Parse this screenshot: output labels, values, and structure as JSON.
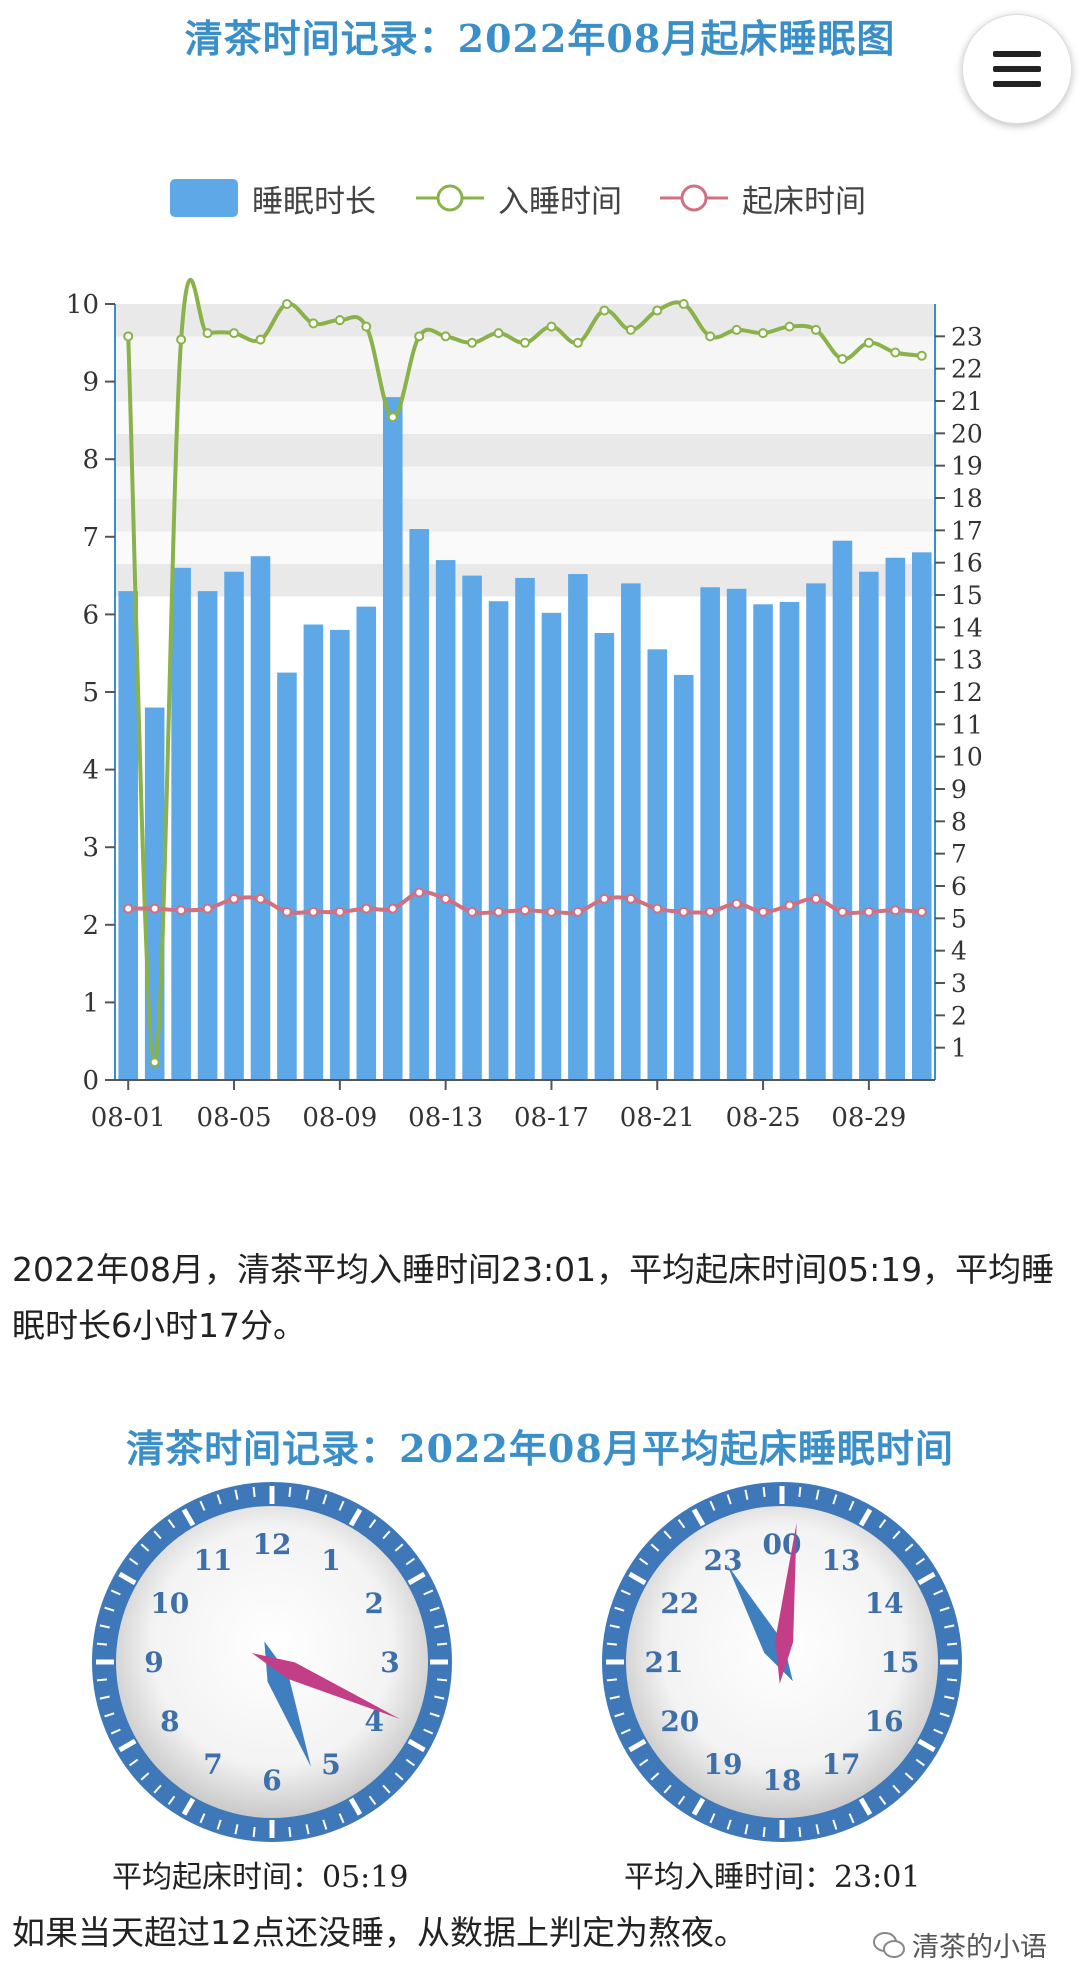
{
  "header": {
    "chart_title": "清茶时间记录：2022年08月起床睡眠图",
    "menu_icon": "hamburger-menu-icon"
  },
  "legend": [
    {
      "label": "睡眠时长",
      "color": "#5ea8e8",
      "shape": "bar"
    },
    {
      "label": "入睡时间",
      "color": "#8ab24a",
      "shape": "line-circle"
    },
    {
      "label": "起床时间",
      "color": "#d07080",
      "shape": "line-circle"
    }
  ],
  "chart_data": {
    "type": "bar",
    "title": "清茶时间记录：2022年08月起床睡眠图",
    "xlabel": "",
    "ylabel": "",
    "x_tick_labels": [
      "08-01",
      "08-05",
      "08-09",
      "08-13",
      "08-17",
      "08-21",
      "08-25",
      "08-29"
    ],
    "categories": [
      "08-01",
      "08-02",
      "08-03",
      "08-04",
      "08-05",
      "08-06",
      "08-07",
      "08-08",
      "08-09",
      "08-10",
      "08-11",
      "08-12",
      "08-13",
      "08-14",
      "08-15",
      "08-16",
      "08-17",
      "08-18",
      "08-19",
      "08-20",
      "08-21",
      "08-22",
      "08-23",
      "08-24",
      "08-25",
      "08-26",
      "08-27",
      "08-28",
      "08-29",
      "08-30",
      "08-31"
    ],
    "ylim_left": [
      0,
      10
    ],
    "ylim_right": [
      0,
      24
    ],
    "left_ticks": [
      "0",
      "1",
      "2",
      "3",
      "4",
      "5",
      "6",
      "7",
      "8",
      "9",
      "10"
    ],
    "right_ticks": [
      "1",
      "2",
      "3",
      "4",
      "5",
      "6",
      "7",
      "8",
      "9",
      "10",
      "11",
      "12",
      "13",
      "14",
      "15",
      "16",
      "17",
      "18",
      "19",
      "20",
      "21",
      "22",
      "23"
    ],
    "series": [
      {
        "name": "睡眠时长",
        "type": "bar",
        "axis": "left",
        "color": "#5ea8e8",
        "values": [
          6.3,
          4.8,
          6.6,
          6.3,
          6.55,
          6.75,
          5.25,
          5.87,
          5.8,
          6.1,
          8.8,
          7.1,
          6.7,
          6.5,
          6.17,
          6.47,
          6.02,
          6.52,
          5.76,
          6.4,
          5.55,
          5.22,
          6.35,
          6.33,
          6.13,
          6.16,
          6.4,
          6.95,
          6.55,
          6.73,
          6.8
        ]
      },
      {
        "name": "入睡时间",
        "type": "line",
        "axis": "right",
        "color": "#8ab24a",
        "values": [
          23.0,
          0.55,
          22.9,
          23.1,
          23.1,
          22.9,
          24.0,
          23.4,
          23.5,
          23.3,
          20.5,
          23.0,
          23.0,
          22.8,
          23.1,
          22.8,
          23.3,
          22.8,
          23.8,
          23.2,
          23.8,
          24.0,
          23.0,
          23.2,
          23.1,
          23.3,
          23.2,
          22.3,
          22.8,
          22.5,
          22.4
        ]
      },
      {
        "name": "起床时间",
        "type": "line",
        "axis": "right",
        "color": "#d07080",
        "values": [
          5.3,
          5.3,
          5.25,
          5.3,
          5.6,
          5.6,
          5.2,
          5.2,
          5.2,
          5.3,
          5.3,
          5.8,
          5.6,
          5.2,
          5.2,
          5.25,
          5.2,
          5.2,
          5.6,
          5.6,
          5.3,
          5.2,
          5.2,
          5.45,
          5.2,
          5.4,
          5.6,
          5.2,
          5.2,
          5.25,
          5.2
        ]
      }
    ],
    "grid": "horizontal bands",
    "legend_position": "top"
  },
  "summary_text": "2022年08月，清茶平均入睡时间23:01，平均起床时间05:19，平均睡眠时长6小时17分。",
  "clocks": {
    "title": "清茶时间记录：2022年08月平均起床睡眠时间",
    "wake": {
      "numbers": [
        "12",
        "1",
        "2",
        "3",
        "4",
        "5",
        "6",
        "7",
        "8",
        "9",
        "10",
        "11"
      ],
      "hour_value": 5.32,
      "minute_value": 19,
      "caption": "平均起床时间：05:19"
    },
    "sleep": {
      "numbers": [
        "00",
        "13",
        "14",
        "15",
        "16",
        "17",
        "18",
        "19",
        "20",
        "21",
        "22",
        "23"
      ],
      "hour_value": 11.02,
      "minute_value": 1,
      "caption": "平均入睡时间：23:01"
    },
    "hour_hand_color": "#3f7fc0",
    "minute_hand_color": "#c23f88"
  },
  "note_text": "如果当天超过12点还没睡，从数据上判定为熬夜。",
  "watermark": {
    "text": "清茶的小语",
    "icon": "wechat-icon"
  }
}
